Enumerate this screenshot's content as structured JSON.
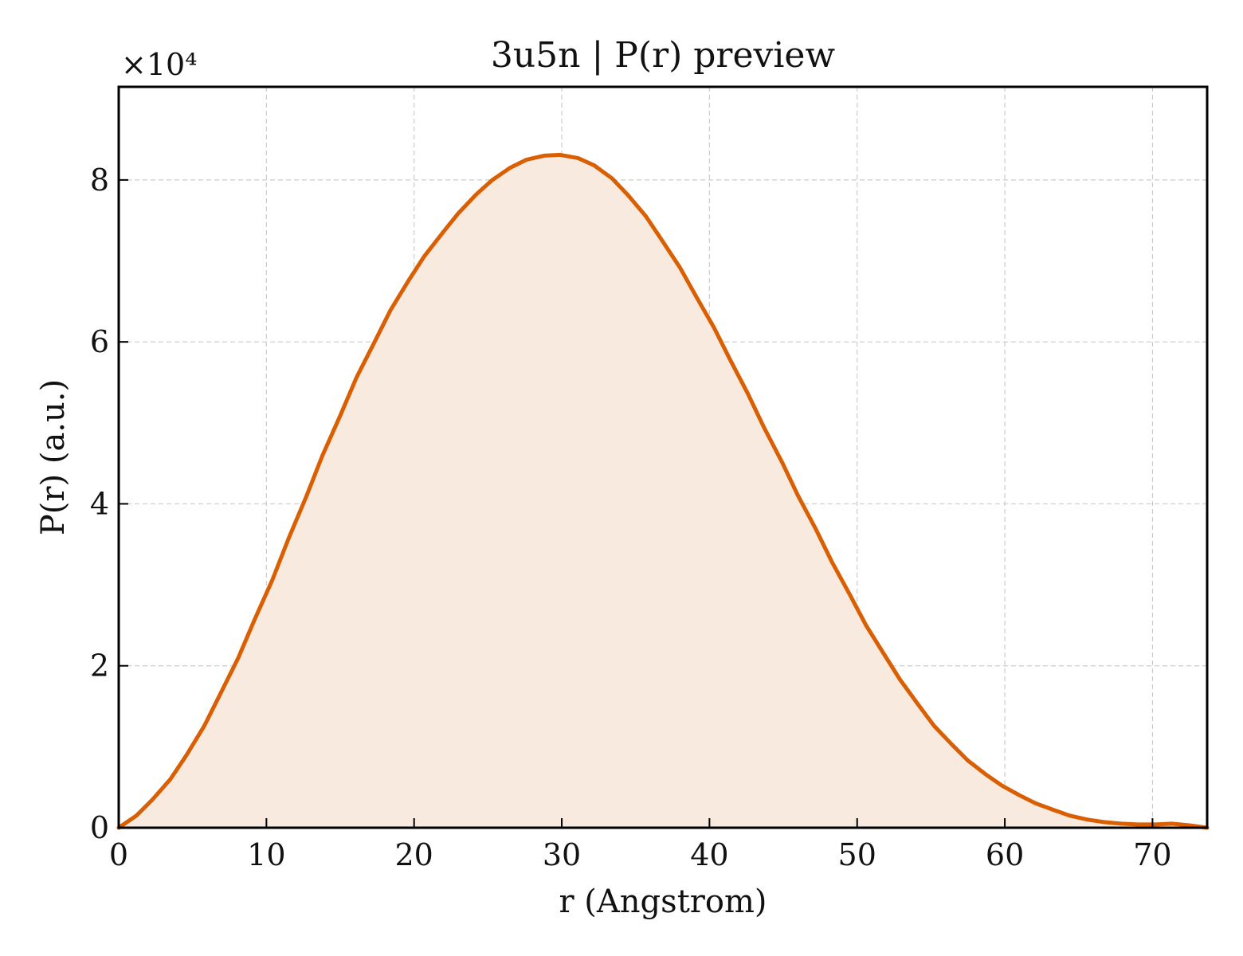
{
  "chart_data": {
    "type": "area",
    "title": "3u5n | P(r) preview",
    "xlabel": "r (Angstrom)",
    "ylabel": "P(r) (a.u.)",
    "y_multiplier_label": "×10⁴",
    "xlim": [
      0,
      73.7
    ],
    "ylim": [
      0,
      91500
    ],
    "x_ticks": [
      0,
      10,
      20,
      30,
      40,
      50,
      60,
      70
    ],
    "x_tick_labels": [
      "0",
      "10",
      "20",
      "30",
      "40",
      "50",
      "60",
      "70"
    ],
    "y_ticks": [
      0,
      20000,
      40000,
      60000,
      80000
    ],
    "y_tick_labels": [
      "0",
      "2",
      "4",
      "6",
      "8"
    ],
    "grid": true,
    "colors": {
      "line": "#d95f02",
      "fill": "#f8eadf"
    },
    "series": [
      {
        "x": [
          0,
          1.2,
          2.3,
          3.5,
          4.6,
          5.8,
          6.9,
          8.1,
          9.2,
          10.4,
          11.5,
          12.7,
          13.8,
          15.0,
          16.1,
          17.3,
          18.4,
          19.6,
          20.7,
          21.9,
          23.0,
          24.2,
          25.3,
          26.5,
          27.6,
          28.8,
          29.9,
          31.1,
          32.2,
          33.4,
          34.5,
          35.7,
          36.8,
          38.0,
          39.1,
          40.3,
          41.4,
          42.6,
          43.7,
          44.9,
          46.0,
          47.2,
          48.3,
          49.5,
          50.6,
          51.8,
          52.9,
          54.1,
          55.2,
          56.4,
          57.5,
          58.7,
          59.8,
          61.0,
          62.1,
          63.3,
          64.4,
          65.6,
          66.7,
          67.9,
          69.0,
          70.2,
          71.3,
          72.5,
          73.7
        ],
        "values": [
          0,
          1500,
          3500,
          6000,
          9000,
          12600,
          16600,
          21000,
          25700,
          30600,
          35700,
          40900,
          46000,
          50900,
          55600,
          59900,
          63900,
          67500,
          70600,
          73400,
          75900,
          78200,
          80000,
          81500,
          82500,
          83000,
          83100,
          82700,
          81800,
          80200,
          78100,
          75500,
          72500,
          69200,
          65600,
          61800,
          57800,
          53600,
          49400,
          45200,
          41000,
          36900,
          32800,
          28800,
          25000,
          21500,
          18300,
          15300,
          12600,
          10300,
          8300,
          6600,
          5200,
          4000,
          3000,
          2200,
          1500,
          1000,
          700,
          500,
          400,
          400,
          500,
          300,
          0
        ]
      }
    ]
  }
}
